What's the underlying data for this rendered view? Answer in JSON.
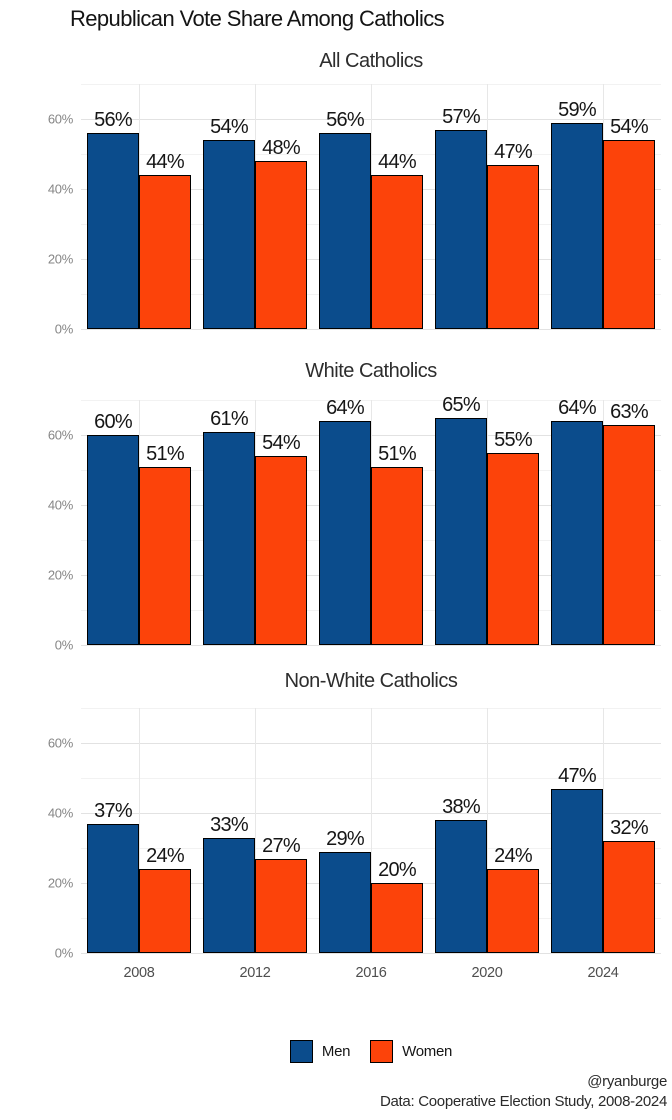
{
  "title": "Republican Vote Share Among Catholics",
  "colors": {
    "men": "#0b4c8c",
    "women": "#fc430a",
    "bar_outline": "#000000",
    "grid_major": "#e2e2e2",
    "grid_minor": "#f2f2f2"
  },
  "legend": {
    "position": "bottom",
    "items": [
      {
        "label": "Men",
        "color": "#0b4c8c"
      },
      {
        "label": "Women",
        "color": "#fc430a"
      }
    ]
  },
  "caption": {
    "line1": "@ryanburge",
    "line2": "Data: Cooperative Election Study, 2008-2024"
  },
  "chart_data": [
    {
      "type": "bar",
      "title": "All Catholics",
      "categories": [
        "2008",
        "2012",
        "2016",
        "2020",
        "2024"
      ],
      "series": [
        {
          "name": "Men",
          "values": [
            56,
            54,
            56,
            57,
            59
          ]
        },
        {
          "name": "Women",
          "values": [
            44,
            48,
            44,
            47,
            54
          ]
        }
      ],
      "ylim": [
        0,
        70
      ],
      "yticks": [
        0,
        20,
        40,
        60
      ],
      "ytick_labels": [
        "0%",
        "20%",
        "40%",
        "60%"
      ],
      "value_label_suffix": "%",
      "grid": true,
      "show_x_axis": false
    },
    {
      "type": "bar",
      "title": "White Catholics",
      "categories": [
        "2008",
        "2012",
        "2016",
        "2020",
        "2024"
      ],
      "series": [
        {
          "name": "Men",
          "values": [
            60,
            61,
            64,
            65,
            64
          ]
        },
        {
          "name": "Women",
          "values": [
            51,
            54,
            51,
            55,
            63
          ]
        }
      ],
      "ylim": [
        0,
        70
      ],
      "yticks": [
        0,
        20,
        40,
        60
      ],
      "ytick_labels": [
        "0%",
        "20%",
        "40%",
        "60%"
      ],
      "value_label_suffix": "%",
      "grid": true,
      "show_x_axis": false
    },
    {
      "type": "bar",
      "title": "Non-White Catholics",
      "categories": [
        "2008",
        "2012",
        "2016",
        "2020",
        "2024"
      ],
      "series": [
        {
          "name": "Men",
          "values": [
            37,
            33,
            29,
            38,
            47
          ]
        },
        {
          "name": "Women",
          "values": [
            24,
            27,
            20,
            24,
            32
          ]
        }
      ],
      "ylim": [
        0,
        70
      ],
      "yticks": [
        0,
        20,
        40,
        60
      ],
      "ytick_labels": [
        "0%",
        "20%",
        "40%",
        "60%"
      ],
      "value_label_suffix": "%",
      "grid": true,
      "show_x_axis": true
    }
  ]
}
